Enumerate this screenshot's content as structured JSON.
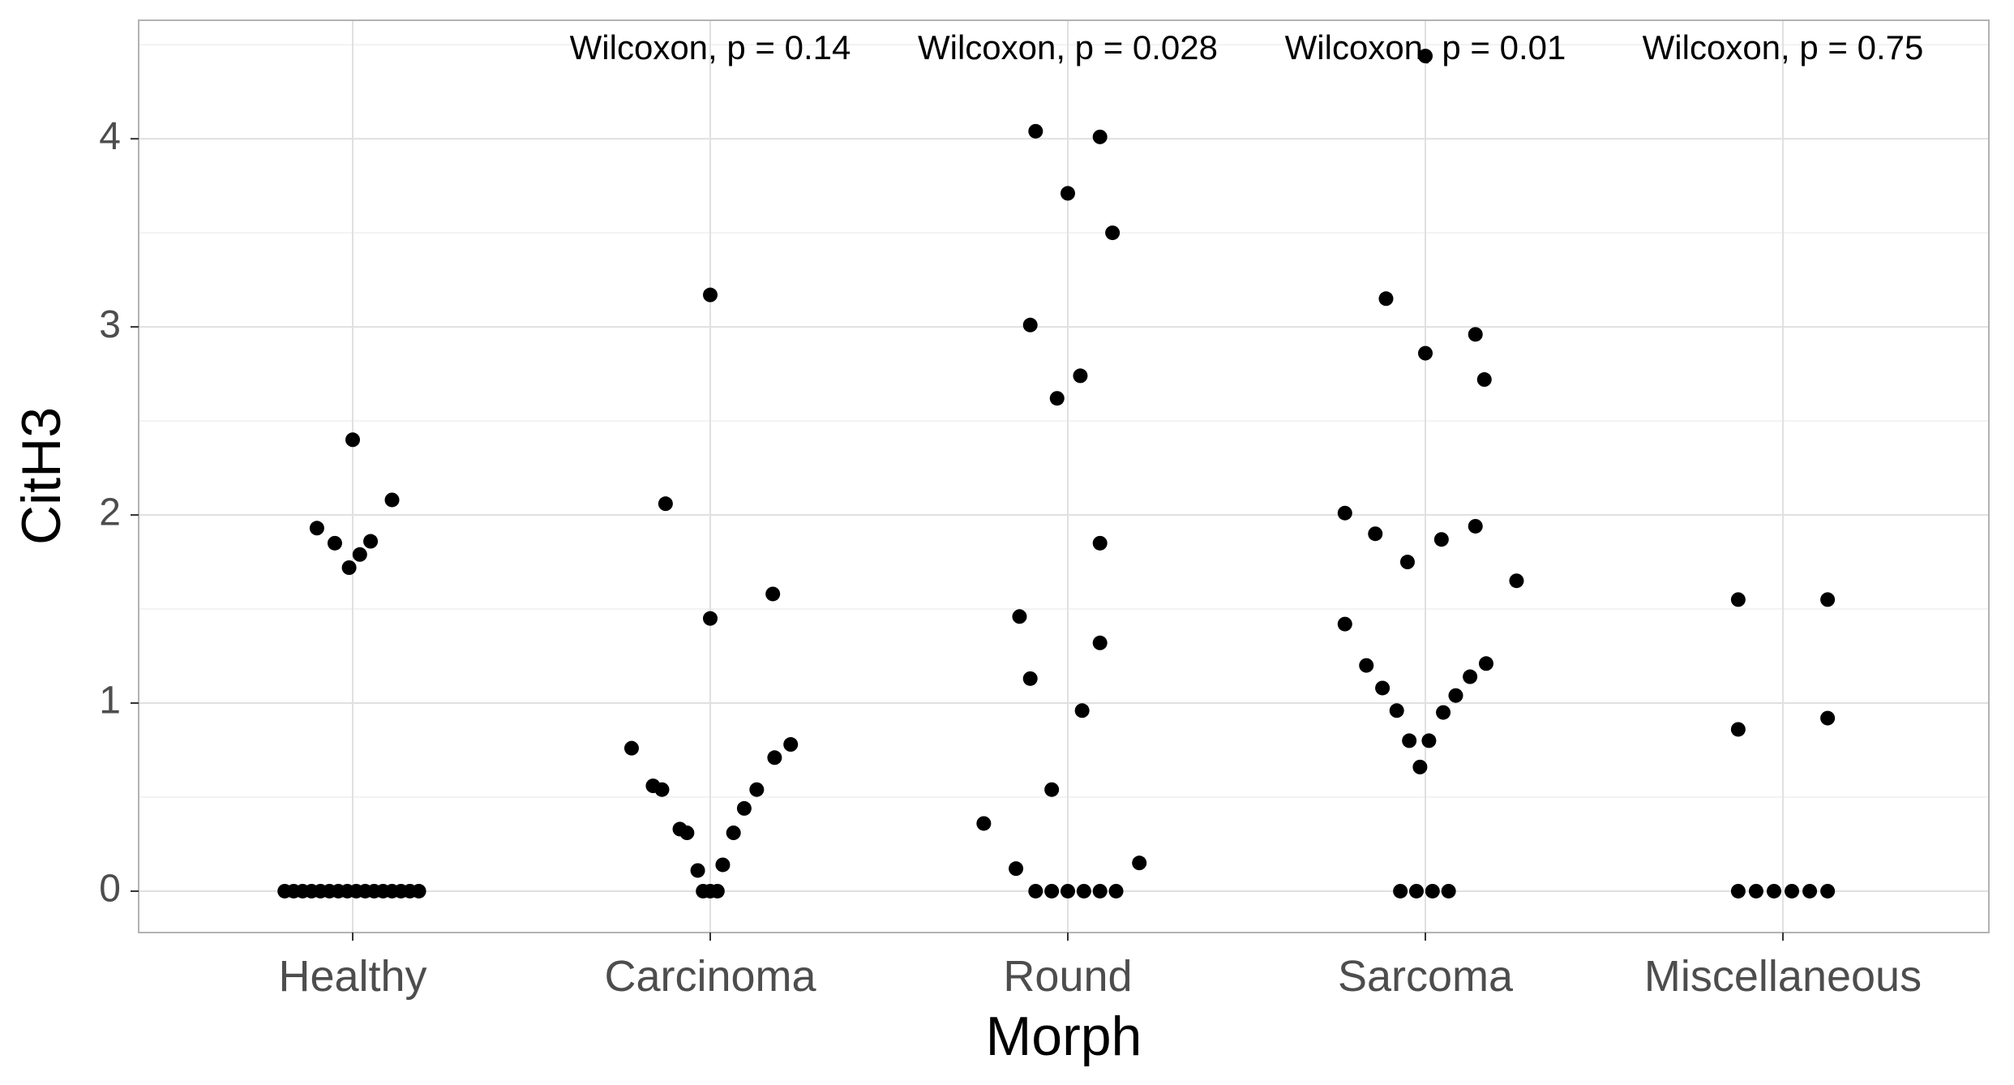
{
  "chart_data": {
    "type": "scatter",
    "xlabel": "Morph",
    "ylabel": "CitH3",
    "categories": [
      "Healthy",
      "Carcinoma",
      "Round",
      "Sarcoma",
      "Miscellaneous"
    ],
    "ylim": [
      -0.22,
      4.63
    ],
    "yticks": [
      0,
      1,
      2,
      3,
      4
    ],
    "grid": true,
    "legend": "none",
    "colors": {
      "point": "#000000",
      "grid_major": "#e0e0e0",
      "grid_minor": "#efefef",
      "border": "#b3b3b3",
      "tick_text": "#4d4d4d"
    },
    "annotations": [
      {
        "category": "Carcinoma",
        "text": "Wilcoxon, p = 0.14"
      },
      {
        "category": "Round",
        "text": "Wilcoxon, p = 0.028"
      },
      {
        "category": "Sarcoma",
        "text": "Wilcoxon, p = 0.01"
      },
      {
        "category": "Miscellaneous",
        "text": "Wilcoxon, p = 0.75"
      }
    ],
    "series": [
      {
        "category": "Healthy",
        "points": [
          {
            "x": -0.19,
            "y": 0
          },
          {
            "x": -0.165,
            "y": 0
          },
          {
            "x": -0.14,
            "y": 0
          },
          {
            "x": -0.115,
            "y": 0
          },
          {
            "x": -0.09,
            "y": 0
          },
          {
            "x": -0.065,
            "y": 0
          },
          {
            "x": -0.04,
            "y": 0
          },
          {
            "x": -0.015,
            "y": 0
          },
          {
            "x": 0.01,
            "y": 0
          },
          {
            "x": 0.035,
            "y": 0
          },
          {
            "x": 0.06,
            "y": 0
          },
          {
            "x": 0.085,
            "y": 0
          },
          {
            "x": 0.11,
            "y": 0
          },
          {
            "x": 0.135,
            "y": 0
          },
          {
            "x": 0.16,
            "y": 0
          },
          {
            "x": 0.185,
            "y": 0
          },
          {
            "x": -0.1,
            "y": 1.93
          },
          {
            "x": -0.05,
            "y": 1.85
          },
          {
            "x": -0.01,
            "y": 1.72
          },
          {
            "x": 0.02,
            "y": 1.79
          },
          {
            "x": 0.05,
            "y": 1.86
          },
          {
            "x": 0.0,
            "y": 2.4
          },
          {
            "x": 0.11,
            "y": 2.08
          }
        ]
      },
      {
        "category": "Carcinoma",
        "points": [
          {
            "x": -0.22,
            "y": 0.76
          },
          {
            "x": -0.16,
            "y": 0.56
          },
          {
            "x": -0.135,
            "y": 0.54
          },
          {
            "x": -0.085,
            "y": 0.33
          },
          {
            "x": -0.065,
            "y": 0.31
          },
          {
            "x": -0.035,
            "y": 0.11
          },
          {
            "x": -0.02,
            "y": 0
          },
          {
            "x": 0.0,
            "y": 0
          },
          {
            "x": 0.02,
            "y": 0
          },
          {
            "x": 0.035,
            "y": 0.14
          },
          {
            "x": 0.065,
            "y": 0.31
          },
          {
            "x": 0.095,
            "y": 0.44
          },
          {
            "x": 0.13,
            "y": 0.54
          },
          {
            "x": 0.18,
            "y": 0.71
          },
          {
            "x": 0.225,
            "y": 0.78
          },
          {
            "x": -0.125,
            "y": 2.06
          },
          {
            "x": 0.0,
            "y": 1.45
          },
          {
            "x": 0.0,
            "y": 3.17
          },
          {
            "x": 0.175,
            "y": 1.58
          }
        ]
      },
      {
        "category": "Round",
        "points": [
          {
            "x": -0.235,
            "y": 0.36
          },
          {
            "x": -0.145,
            "y": 0.12
          },
          {
            "x": -0.09,
            "y": 0
          },
          {
            "x": -0.045,
            "y": 0
          },
          {
            "x": 0.0,
            "y": 0
          },
          {
            "x": 0.045,
            "y": 0
          },
          {
            "x": 0.09,
            "y": 0
          },
          {
            "x": 0.135,
            "y": 0
          },
          {
            "x": 0.2,
            "y": 0.15
          },
          {
            "x": -0.045,
            "y": 0.54
          },
          {
            "x": 0.04,
            "y": 0.96
          },
          {
            "x": -0.105,
            "y": 1.13
          },
          {
            "x": -0.135,
            "y": 1.46
          },
          {
            "x": 0.09,
            "y": 1.32
          },
          {
            "x": 0.09,
            "y": 1.85
          },
          {
            "x": -0.03,
            "y": 2.62
          },
          {
            "x": 0.035,
            "y": 2.74
          },
          {
            "x": -0.105,
            "y": 3.01
          },
          {
            "x": 0.125,
            "y": 3.5
          },
          {
            "x": 0.0,
            "y": 3.71
          },
          {
            "x": -0.09,
            "y": 4.04
          },
          {
            "x": 0.09,
            "y": 4.01
          }
        ]
      },
      {
        "category": "Sarcoma",
        "points": [
          {
            "x": -0.07,
            "y": 0
          },
          {
            "x": -0.025,
            "y": 0
          },
          {
            "x": 0.02,
            "y": 0
          },
          {
            "x": 0.065,
            "y": 0
          },
          {
            "x": -0.015,
            "y": 0.66
          },
          {
            "x": -0.045,
            "y": 0.8
          },
          {
            "x": 0.01,
            "y": 0.8
          },
          {
            "x": -0.08,
            "y": 0.96
          },
          {
            "x": 0.05,
            "y": 0.95
          },
          {
            "x": -0.12,
            "y": 1.08
          },
          {
            "x": 0.085,
            "y": 1.04
          },
          {
            "x": -0.165,
            "y": 1.2
          },
          {
            "x": 0.125,
            "y": 1.14
          },
          {
            "x": 0.17,
            "y": 1.21
          },
          {
            "x": -0.225,
            "y": 1.42
          },
          {
            "x": 0.255,
            "y": 1.65
          },
          {
            "x": -0.05,
            "y": 1.75
          },
          {
            "x": 0.045,
            "y": 1.87
          },
          {
            "x": -0.14,
            "y": 1.9
          },
          {
            "x": 0.14,
            "y": 1.94
          },
          {
            "x": -0.225,
            "y": 2.01
          },
          {
            "x": 0.165,
            "y": 2.72
          },
          {
            "x": 0.0,
            "y": 2.86
          },
          {
            "x": 0.14,
            "y": 2.96
          },
          {
            "x": -0.11,
            "y": 3.15
          },
          {
            "x": 0.0,
            "y": 4.44
          }
        ]
      },
      {
        "category": "Miscellaneous",
        "points": [
          {
            "x": -0.125,
            "y": 0
          },
          {
            "x": -0.075,
            "y": 0
          },
          {
            "x": -0.025,
            "y": 0
          },
          {
            "x": 0.025,
            "y": 0
          },
          {
            "x": 0.075,
            "y": 0
          },
          {
            "x": 0.125,
            "y": 0
          },
          {
            "x": -0.125,
            "y": 0.86
          },
          {
            "x": -0.125,
            "y": 1.55
          },
          {
            "x": 0.125,
            "y": 0.92
          },
          {
            "x": 0.125,
            "y": 1.55
          }
        ]
      }
    ]
  }
}
